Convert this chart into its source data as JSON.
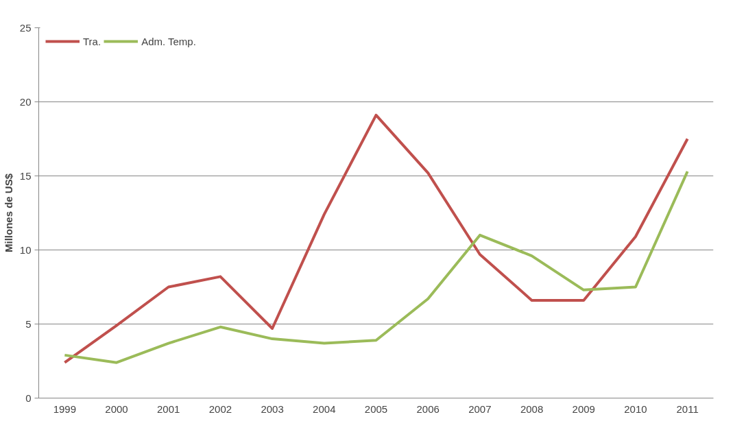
{
  "chart_data": {
    "type": "line",
    "ylabel": "Millones de US$",
    "categories": [
      "1999",
      "2000",
      "2001",
      "2002",
      "2003",
      "2004",
      "2005",
      "2006",
      "2007",
      "2008",
      "2009",
      "2010",
      "2011"
    ],
    "series": [
      {
        "name": "Tra.",
        "color": "#c0504d",
        "values": [
          2.4,
          4.9,
          7.5,
          8.2,
          4.7,
          12.4,
          19.1,
          15.2,
          9.7,
          6.6,
          6.6,
          10.9,
          17.5
        ]
      },
      {
        "name": "Adm. Temp.",
        "color": "#9bbb59",
        "values": [
          2.9,
          2.4,
          3.7,
          4.8,
          4.0,
          3.7,
          3.9,
          6.7,
          11.0,
          9.6,
          7.3,
          7.5,
          15.3
        ]
      }
    ],
    "ylim": [
      0,
      25
    ],
    "yticks": [
      0,
      5,
      10,
      15,
      20,
      25
    ],
    "grid": "y",
    "legend": "top left",
    "marker": "none",
    "line_style": "solid"
  }
}
